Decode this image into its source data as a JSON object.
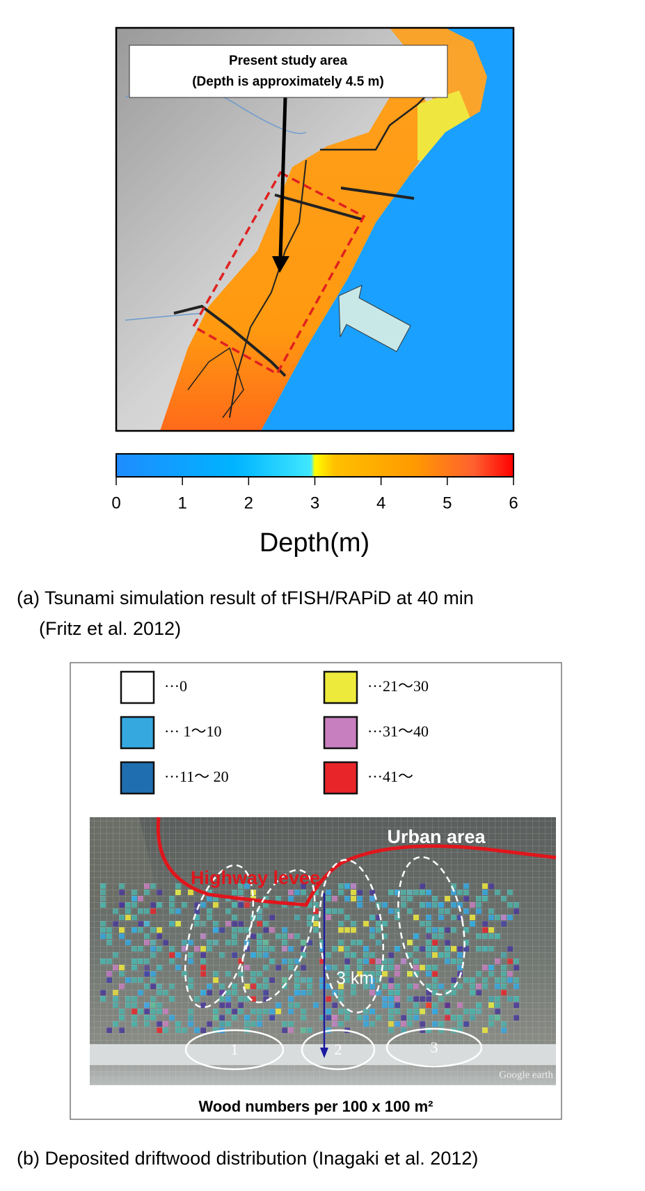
{
  "panel_a": {
    "callout_title": "Present study area",
    "callout_subtitle": "(Depth is approximately 4.5 m)",
    "colorbar": {
      "ticks": [
        0,
        1,
        2,
        3,
        4,
        5,
        6
      ],
      "label": "Depth(m)"
    },
    "caption_lines": [
      "(a) Tsunami simulation result of tFISH/RAPiD at 40 min",
      "(Fritz et al. 2012)"
    ]
  },
  "panel_b": {
    "legend": [
      {
        "label": "···0",
        "color": "#ffffff"
      },
      {
        "label": "··· 1～10",
        "color": "#35a8e0"
      },
      {
        "label": "···11～ 20",
        "color": "#1f6fb0"
      },
      {
        "label": "···21～30",
        "color": "#eeea3c"
      },
      {
        "label": "···31～40",
        "color": "#c77fbf"
      },
      {
        "label": "···41～",
        "color": "#e8262a"
      }
    ],
    "urban_label": "Urban area",
    "levee_label": "Highway levee",
    "distance_label": "3 km",
    "zones": [
      "1",
      "2",
      "3"
    ],
    "watermark": "Google earth",
    "footer": "Wood numbers per 100 x 100 m²",
    "caption": "(b) Deposited driftwood distribution (Inagaki et al. 2012)"
  }
}
